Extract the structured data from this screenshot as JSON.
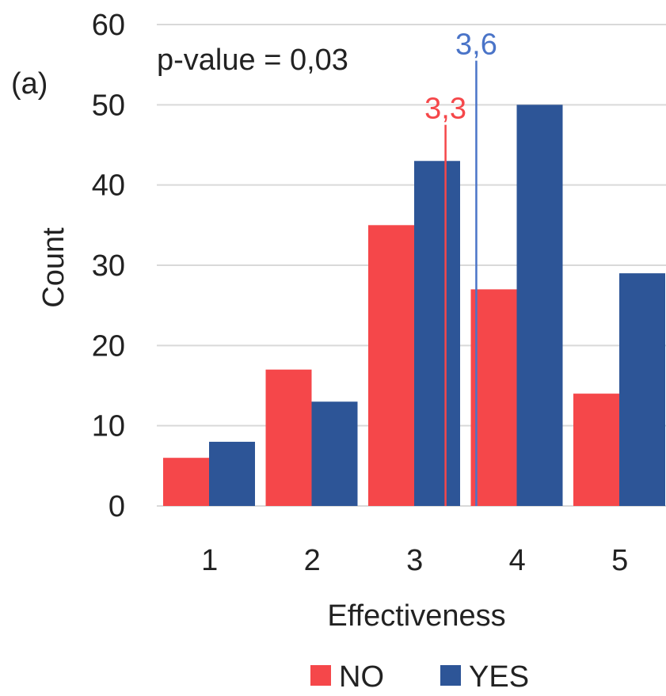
{
  "panel_label": "(a)",
  "annotation": "p-value = 0,03",
  "chart_data": {
    "type": "bar",
    "categories": [
      "1",
      "2",
      "3",
      "4",
      "5"
    ],
    "series": [
      {
        "name": "NO",
        "color": "#F5474A",
        "values": [
          6,
          17,
          35,
          27,
          14
        ]
      },
      {
        "name": "YES",
        "color": "#2D5597",
        "values": [
          8,
          13,
          43,
          50,
          29
        ]
      }
    ],
    "xlabel": "Effectiveness",
    "ylabel": "Count",
    "ylim": [
      0,
      60
    ],
    "yticks": [
      0,
      10,
      20,
      30,
      40,
      50,
      60
    ],
    "grid": true,
    "legend_position": "bottom",
    "mean_lines": [
      {
        "series": "NO",
        "value": 3.3,
        "label": "3,3",
        "color": "#F5474A",
        "top": 47.5
      },
      {
        "series": "YES",
        "value": 3.6,
        "label": "3,6",
        "color": "#4A74C8",
        "top": 55.5
      }
    ]
  }
}
